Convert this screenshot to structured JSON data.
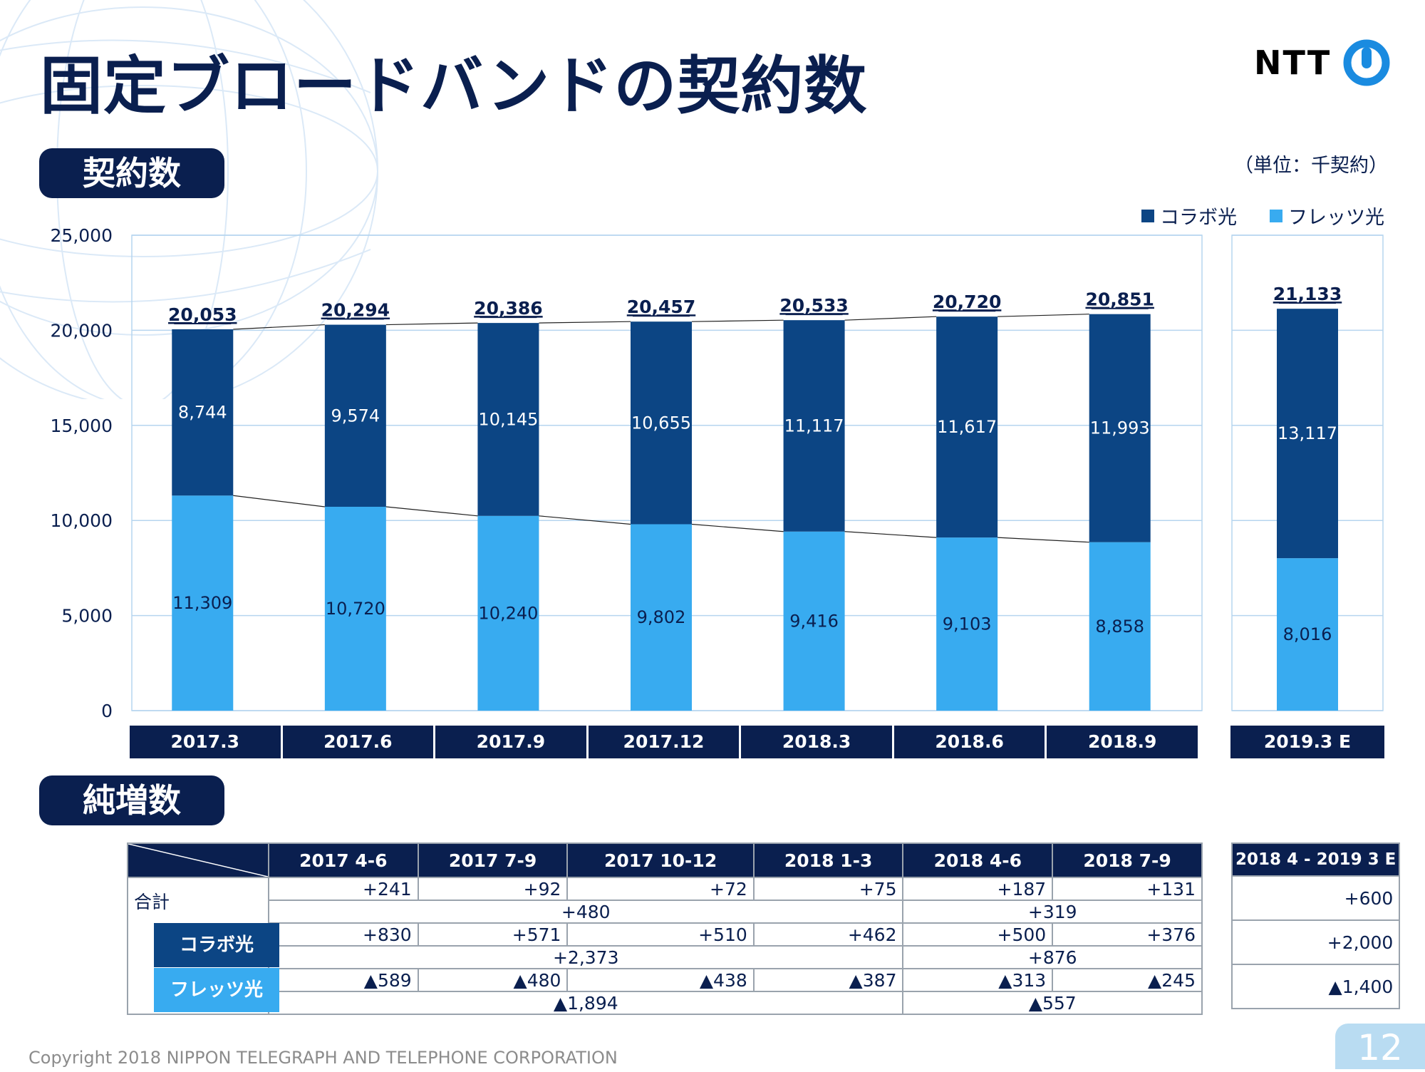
{
  "page": {
    "title": "固定ブロードバンドの契約数",
    "logo_text": "NTT",
    "section_contracts": "契約数",
    "section_net": "純増数",
    "unit": "（単位：千契約）",
    "copyright": "Copyright 2018 NIPPON TELEGRAPH AND TELEPHONE CORPORATION",
    "page_number": "12"
  },
  "colors": {
    "collabo": "#0c4584",
    "flets": "#38abf0",
    "navy": "#0a1f4f",
    "grid": "#b6d5ef"
  },
  "chart_data": {
    "type": "bar",
    "stacked": true,
    "categories": [
      "2017.3",
      "2017.6",
      "2017.9",
      "2017.12",
      "2018.3",
      "2018.6",
      "2018.9"
    ],
    "forecast_category": "2019.3 E",
    "series": [
      {
        "name": "コラボ光",
        "values": [
          8744,
          9574,
          10145,
          10655,
          11117,
          11617,
          11993
        ],
        "forecast": 13117,
        "labels": [
          "8,744",
          "9,574",
          "10,145",
          "10,655",
          "11,117",
          "11,617",
          "11,993"
        ],
        "forecast_label": "13,117"
      },
      {
        "name": "フレッツ光",
        "values": [
          11309,
          10720,
          10240,
          9802,
          9416,
          9103,
          8858
        ],
        "forecast": 8016,
        "labels": [
          "11,309",
          "10,720",
          "10,240",
          "9,802",
          "9,416",
          "9,103",
          "8,858"
        ],
        "forecast_label": "8,016"
      }
    ],
    "totals": [
      20053,
      20294,
      20386,
      20457,
      20533,
      20720,
      20851
    ],
    "total_labels": [
      "20,053",
      "20,294",
      "20,386",
      "20,457",
      "20,533",
      "20,720",
      "20,851"
    ],
    "forecast_total": 21133,
    "forecast_total_label": "21,133",
    "ylim": [
      0,
      25000
    ],
    "yticks": [
      "0",
      "5,000",
      "10,000",
      "15,000",
      "20,000",
      "25,000"
    ],
    "grid": true,
    "legend_position": "top-right"
  },
  "net_table": {
    "headers": [
      "2017 4-6",
      "2017 7-9",
      "2017 10-12",
      "2018 1-3",
      "2018 4-6",
      "2018 7-9"
    ],
    "side_header": "2018 4 - 2019 3 E",
    "rows": [
      {
        "label": "合計",
        "values": [
          "+241",
          "+92",
          "+72",
          "+75",
          "+187",
          "+131"
        ],
        "sub": [
          "+480",
          "+319"
        ],
        "side": "+600"
      },
      {
        "label": "コラボ光",
        "values": [
          "+830",
          "+571",
          "+510",
          "+462",
          "+500",
          "+376"
        ],
        "sub": [
          "+2,373",
          "+876"
        ],
        "side": "+2,000"
      },
      {
        "label": "フレッツ光",
        "values": [
          "▲589",
          "▲480",
          "▲438",
          "▲387",
          "▲313",
          "▲245"
        ],
        "sub": [
          "▲1,894",
          "▲557"
        ],
        "side": "▲1,400"
      }
    ]
  }
}
